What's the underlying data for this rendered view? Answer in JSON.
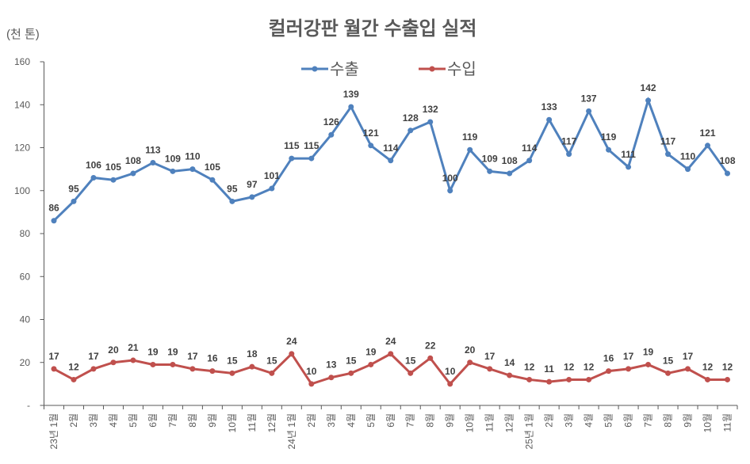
{
  "chart_data": {
    "type": "line",
    "title": "컬러강판 월간 수출입 실적",
    "ylabel": "(천 톤)",
    "ylim": [
      0,
      160
    ],
    "yticks": [
      0,
      20,
      40,
      60,
      80,
      100,
      120,
      140,
      160
    ],
    "ytick_labels": [
      "-",
      "20",
      "40",
      "60",
      "80",
      "100",
      "120",
      "140",
      "160"
    ],
    "grid": false,
    "legend_position": "top-center",
    "categories": [
      "23년 1월",
      "2월",
      "3월",
      "4월",
      "5월",
      "6월",
      "7월",
      "8월",
      "9월",
      "10월",
      "11월",
      "12월",
      "24년 1월",
      "2월",
      "3월",
      "4월",
      "5월",
      "6월",
      "7월",
      "8월",
      "9월",
      "10월",
      "11월",
      "12월",
      "25년 1월",
      "2월",
      "3월",
      "4월",
      "5월",
      "6월",
      "7월",
      "8월",
      "9월",
      "10월",
      "11월"
    ],
    "series": [
      {
        "name": "수출",
        "color": "#4f81bd",
        "values": [
          86,
          95,
          106,
          105,
          108,
          113,
          109,
          110,
          105,
          95,
          97,
          101,
          115,
          115,
          126,
          139,
          121,
          114,
          128,
          132,
          100,
          119,
          109,
          108,
          114,
          133,
          117,
          137,
          119,
          111,
          142,
          117,
          110,
          121,
          108
        ]
      },
      {
        "name": "수입",
        "color": "#c0504d",
        "values": [
          17,
          12,
          17,
          20,
          21,
          19,
          19,
          17,
          16,
          15,
          18,
          15,
          24,
          10,
          13,
          15,
          19,
          24,
          15,
          22,
          10,
          20,
          17,
          14,
          12,
          11,
          12,
          12,
          16,
          17,
          19,
          15,
          17,
          12,
          12
        ]
      }
    ]
  }
}
